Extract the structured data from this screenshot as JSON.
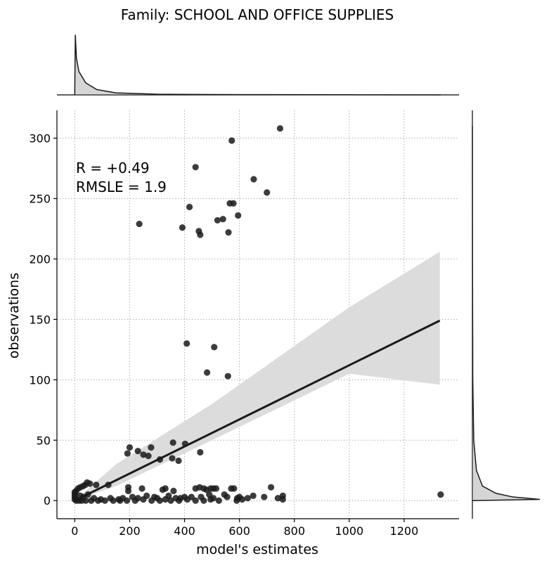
{
  "chart_data": {
    "type": "scatter",
    "title": "Family: SCHOOL AND OFFICE SUPPLIES",
    "xlabel": "model's estimates",
    "ylabel": "observations",
    "xlim": [
      -65,
      1400
    ],
    "ylim": [
      -15,
      323
    ],
    "xticks": [
      0,
      200,
      400,
      600,
      800,
      1000,
      1200
    ],
    "yticks": [
      0,
      50,
      100,
      150,
      200,
      250,
      300
    ],
    "xtick_labels": [
      "0",
      "200",
      "400",
      "600",
      "800",
      "1000",
      "1200"
    ],
    "ytick_labels": [
      "0",
      "50",
      "100",
      "150",
      "200",
      "250",
      "300"
    ],
    "grid": true,
    "annotation": [
      "R = +0.49",
      "RMSLE =  1.9"
    ],
    "colors": {
      "points": "#1a1a1a",
      "line": "#1a1a1a",
      "ci_band": "#dcdcdc",
      "grid": "#b0b0b0"
    },
    "regression": {
      "x": [
        0,
        1330
      ],
      "y": [
        0,
        149
      ],
      "ci_upper": [
        [
          0,
          0
        ],
        [
          150,
          30
        ],
        [
          500,
          80
        ],
        [
          1000,
          160
        ],
        [
          1330,
          206
        ]
      ],
      "ci_lower": [
        [
          0,
          0
        ],
        [
          150,
          12
        ],
        [
          500,
          50
        ],
        [
          1000,
          105
        ],
        [
          1330,
          96
        ]
      ]
    },
    "points": [
      [
        748,
        308
      ],
      [
        572,
        298
      ],
      [
        440,
        276
      ],
      [
        652,
        266
      ],
      [
        700,
        255
      ],
      [
        418,
        243
      ],
      [
        565,
        246
      ],
      [
        578,
        246
      ],
      [
        595,
        236
      ],
      [
        520,
        232
      ],
      [
        540,
        233
      ],
      [
        235,
        229
      ],
      [
        392,
        226
      ],
      [
        452,
        223
      ],
      [
        560,
        222
      ],
      [
        457,
        220
      ],
      [
        408,
        130
      ],
      [
        508,
        127
      ],
      [
        482,
        106
      ],
      [
        558,
        103
      ],
      [
        200,
        44
      ],
      [
        278,
        44
      ],
      [
        358,
        48
      ],
      [
        402,
        47
      ],
      [
        230,
        41
      ],
      [
        192,
        39
      ],
      [
        250,
        38
      ],
      [
        268,
        37
      ],
      [
        355,
        35
      ],
      [
        310,
        34
      ],
      [
        378,
        33
      ],
      [
        457,
        40
      ],
      [
        122,
        13
      ],
      [
        78,
        13
      ],
      [
        55,
        14
      ],
      [
        45,
        15
      ],
      [
        38,
        13
      ],
      [
        30,
        12
      ],
      [
        20,
        11
      ],
      [
        12,
        10
      ],
      [
        5,
        8
      ],
      [
        0,
        7
      ],
      [
        0,
        5
      ],
      [
        0,
        3
      ],
      [
        0,
        1
      ],
      [
        5,
        0
      ],
      [
        15,
        0
      ],
      [
        25,
        0
      ],
      [
        40,
        0
      ],
      [
        60,
        0
      ],
      [
        85,
        0
      ],
      [
        110,
        0
      ],
      [
        140,
        0
      ],
      [
        165,
        0
      ],
      [
        190,
        0
      ],
      [
        220,
        0
      ],
      [
        250,
        1
      ],
      [
        280,
        0
      ],
      [
        310,
        0
      ],
      [
        330,
        1
      ],
      [
        350,
        0
      ],
      [
        380,
        0
      ],
      [
        410,
        1
      ],
      [
        440,
        0
      ],
      [
        470,
        0
      ],
      [
        495,
        1
      ],
      [
        525,
        0
      ],
      [
        555,
        3
      ],
      [
        590,
        0
      ],
      [
        610,
        1
      ],
      [
        630,
        2
      ],
      [
        650,
        4
      ],
      [
        690,
        3
      ],
      [
        740,
        2
      ],
      [
        758,
        4
      ],
      [
        758,
        1
      ],
      [
        1333,
        5
      ],
      [
        195,
        8
      ],
      [
        195,
        11
      ],
      [
        245,
        10
      ],
      [
        320,
        9
      ],
      [
        330,
        10
      ],
      [
        360,
        8
      ],
      [
        368,
        2
      ],
      [
        440,
        10
      ],
      [
        455,
        11
      ],
      [
        470,
        10
      ],
      [
        480,
        9
      ],
      [
        490,
        5
      ],
      [
        495,
        10
      ],
      [
        505,
        10
      ],
      [
        515,
        10
      ],
      [
        545,
        5
      ],
      [
        570,
        10
      ],
      [
        580,
        10
      ],
      [
        592,
        2
      ],
      [
        600,
        3
      ],
      [
        715,
        11
      ],
      [
        20,
        4
      ],
      [
        32,
        3
      ],
      [
        48,
        5
      ],
      [
        70,
        2
      ],
      [
        95,
        1
      ],
      [
        130,
        2
      ],
      [
        160,
        1
      ],
      [
        175,
        2
      ],
      [
        210,
        3
      ],
      [
        230,
        2
      ],
      [
        262,
        4
      ],
      [
        290,
        3
      ],
      [
        300,
        2
      ],
      [
        342,
        4
      ],
      [
        400,
        3
      ],
      [
        425,
        3
      ],
      [
        505,
        2
      ],
      [
        460,
        3
      ],
      [
        385,
        2
      ]
    ],
    "marginals": {
      "x_density": [
        [
          0,
          0.1
        ],
        [
          2,
          0.9
        ],
        [
          6,
          0.55
        ],
        [
          15,
          0.35
        ],
        [
          40,
          0.18
        ],
        [
          80,
          0.08
        ],
        [
          150,
          0.03
        ],
        [
          300,
          0.01
        ],
        [
          600,
          0.004
        ],
        [
          1000,
          0.002
        ],
        [
          1333,
          0.0
        ]
      ],
      "y_density": [
        [
          0,
          0.0
        ],
        [
          1,
          1.0
        ],
        [
          3,
          0.6
        ],
        [
          6,
          0.35
        ],
        [
          12,
          0.15
        ],
        [
          25,
          0.06
        ],
        [
          50,
          0.02
        ],
        [
          100,
          0.006
        ],
        [
          200,
          0.002
        ],
        [
          310,
          0.0
        ]
      ]
    }
  }
}
